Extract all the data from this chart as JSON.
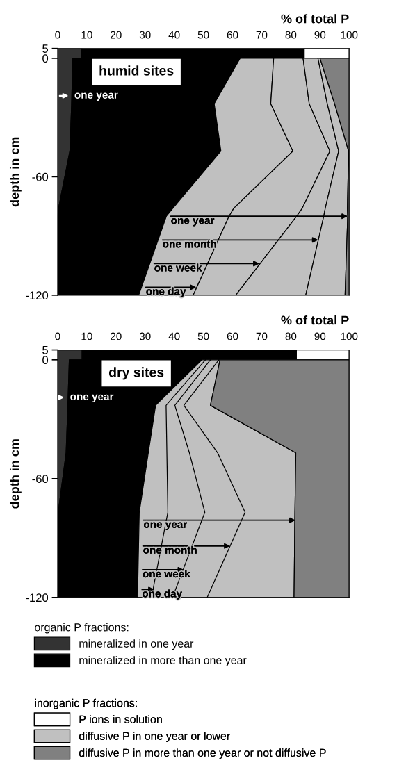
{
  "chart_data": [
    {
      "type": "area",
      "title": "humid sites",
      "xlabel": "% of total P",
      "ylabel": "depth in cm",
      "orientation": "horizontal",
      "stacked": true,
      "x": [
        5,
        0,
        0,
        -23,
        -47,
        -76,
        -80,
        -120
      ],
      "series": [
        {
          "color": "#333333",
          "values": [
            8.3,
            8.3,
            5.2,
            4.8,
            4.2,
            0.3,
            0,
            0
          ]
        },
        {
          "color": "#000000",
          "values": [
            76.3,
            76.3,
            57.4,
            48.9,
            51.8,
            39.2,
            37.3,
            27.8
          ]
        },
        {
          "color": "#ffffff",
          "values": [
            15.4,
            15.4,
            null,
            null,
            null,
            null,
            null,
            null
          ]
        },
        {
          "color": "#c0c0c0",
          "values": [
            null,
            null,
            11.5,
            19.4,
            24.7,
            20.9,
            21.5,
            18.7
          ]
        },
        {
          "color": "#c0c0c0",
          "values": [
            null,
            null,
            10.1,
            13.2,
            12.7,
            23.5,
            23.2,
            14.6
          ]
        },
        {
          "color": "#c0c0c0",
          "values": [
            null,
            null,
            5.1,
            6.2,
            3.0,
            7.9,
            9.3,
            24.0
          ]
        },
        {
          "color": "#c0c0c0",
          "values": [
            null,
            null,
            0.7,
            2.5,
            3.4,
            7.6,
            8.2,
            13.5
          ]
        },
        {
          "color": "#808080",
          "values": [
            null,
            null,
            10.0,
            5.0,
            0.2,
            0.6,
            0.5,
            1.4
          ]
        }
      ],
      "xlim": [
        0,
        100
      ],
      "xticks": [
        0,
        10,
        20,
        30,
        40,
        50,
        60,
        70,
        80,
        90,
        100
      ],
      "ylim": [
        -120,
        5
      ],
      "yticks": [
        5,
        0,
        -60,
        -120
      ],
      "annotations": [
        {
          "text": "one year",
          "x": 4.4,
          "y": -19
        },
        {
          "text": "one year",
          "x": 99.5,
          "y": -80
        },
        {
          "text": "one month",
          "x": 89.4,
          "y": -92
        },
        {
          "text": "one week",
          "x": 69.2,
          "y": -104
        },
        {
          "text": "one day",
          "x": 47.6,
          "y": -116
        }
      ]
    },
    {
      "type": "area",
      "title": "dry sites",
      "xlabel": "% of total P",
      "ylabel": "depth in cm",
      "orientation": "horizontal",
      "stacked": true,
      "x": [
        5,
        0,
        0,
        -23,
        -47,
        -77,
        -120
      ],
      "series": [
        {
          "name": "mineralized in one year",
          "color": "#333333",
          "values": [
            8.4,
            8.4,
            4.0,
            3.5,
            2.9,
            0.2,
            0
          ]
        },
        {
          "name": "mineralized in more than one year",
          "color": "#000000",
          "values": [
            73.5,
            73.5,
            45.5,
            30.1,
            28.2,
            27.8,
            27.4
          ]
        },
        {
          "name": "P ions in solution",
          "color": "#ffffff",
          "values": [
            18.1,
            18.1,
            null,
            null,
            null,
            null,
            null
          ]
        },
        {
          "name": "diffusive P in one year or lower",
          "color": "#c0c0c0",
          "values": [
            null,
            null,
            6.2,
            18.8,
            50.6,
            53.4,
            53.7
          ]
        },
        {
          "name": "diffusive P in more than one year or not diffusive P",
          "color": "#808080",
          "values": [
            null,
            null,
            44.3,
            47.6,
            18.3,
            18.6,
            18.9
          ]
        },
        {
          "type": "line",
          "color": "#000000",
          "x": [
            0,
            -23,
            -77,
            -120
          ],
          "values": [
            50.7,
            37.2,
            37.8,
            32.2
          ]
        },
        {
          "type": "line",
          "color": "#000000",
          "x": [
            0,
            -23,
            -47,
            -77,
            -120
          ],
          "values": [
            52.4,
            40.2,
            45.2,
            50.5,
            39.4
          ]
        },
        {
          "type": "line",
          "color": "#000000",
          "x": [
            0,
            -23,
            -47,
            -77,
            -120
          ],
          "values": [
            55.3,
            43.3,
            54.9,
            64.3,
            51.3
          ]
        }
      ],
      "xlim": [
        0,
        100
      ],
      "xticks": [
        0,
        10,
        20,
        30,
        40,
        50,
        60,
        70,
        80,
        90,
        100
      ],
      "ylim": [
        -120,
        5
      ],
      "yticks": [
        5,
        0,
        -60,
        -120
      ],
      "legend": "bottom",
      "annotations": [
        "organic P fractions:",
        "inorganic P fractions:",
        {
          "text": "one year",
          "x": 2.9,
          "y": -19
        },
        {
          "text": "one year",
          "x": 81.6,
          "y": -81
        },
        {
          "text": "one month",
          "x": 59.2,
          "y": -94
        },
        {
          "text": "one week",
          "x": 43.3,
          "y": -106
        },
        {
          "text": "one day",
          "x": 33.2,
          "y": -116
        }
      ]
    }
  ]
}
